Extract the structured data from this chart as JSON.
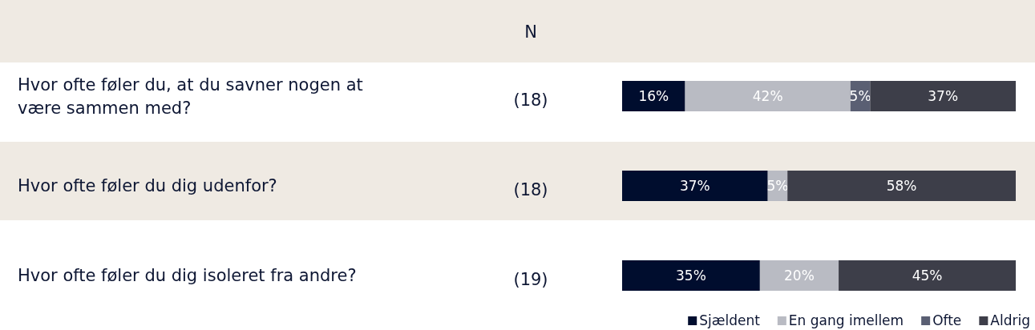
{
  "chart_data": {
    "type": "bar",
    "orientation": "horizontal",
    "stacked": true,
    "categories": [
      "Hvor ofte føler du, at du savner nogen at være sammen med?",
      "Hvor ofte føler du dig udenfor?",
      "Hvor ofte føler du dig isoleret fra andre?"
    ],
    "series": [
      {
        "name": "Sjældent",
        "color": "#000d2e",
        "values": [
          16,
          37,
          35
        ],
        "value_labels": [
          "16%",
          "37%",
          "35%"
        ]
      },
      {
        "name": "En gang imellem",
        "color": "#b9bbc3",
        "values": [
          42,
          5,
          20
        ],
        "value_labels": [
          "42%",
          "5%",
          "20%"
        ]
      },
      {
        "name": "Ofte",
        "color": "#5a5f73",
        "values": [
          5,
          null,
          null
        ],
        "value_labels": [
          "5%",
          null,
          null
        ]
      },
      {
        "name": "Aldrig",
        "color": "#3d3e49",
        "values": [
          37,
          58,
          45
        ],
        "value_labels": [
          "37%",
          "58%",
          "45%"
        ]
      }
    ],
    "annotations": [
      "N",
      "(18)",
      "(18)",
      "(19)"
    ],
    "legend": "bottom right"
  }
}
